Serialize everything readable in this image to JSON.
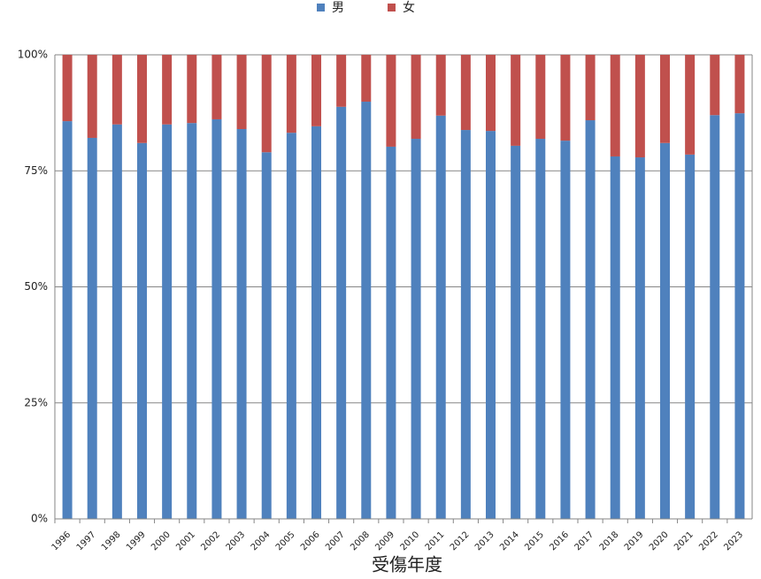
{
  "chart_data": {
    "type": "stacked_bar",
    "x_label": "受傷年度",
    "categories": [
      "1996",
      "1997",
      "1998",
      "1999",
      "2000",
      "2001",
      "2002",
      "2003",
      "2004",
      "2005",
      "2006",
      "2007",
      "2008",
      "2009",
      "2010",
      "2011",
      "2012",
      "2013",
      "2014",
      "2015",
      "2016",
      "2017",
      "2018",
      "2019",
      "2020",
      "2021",
      "2022",
      "2023"
    ],
    "series": [
      {
        "name": "男",
        "color": "#4f81bd",
        "values": [
          85.7,
          82.1,
          85.0,
          81.0,
          85.0,
          85.3,
          86.1,
          84.0,
          79.0,
          83.2,
          84.6,
          88.8,
          89.9,
          80.2,
          81.9,
          86.9,
          83.8,
          83.6,
          80.4,
          81.9,
          81.5,
          85.9,
          78.1,
          77.9,
          81.0,
          78.5,
          87.0,
          87.4
        ]
      },
      {
        "name": "女",
        "color": "#c0504d",
        "values": [
          14.3,
          17.9,
          15.0,
          19.0,
          15.0,
          14.7,
          13.9,
          16.0,
          21.0,
          16.8,
          15.4,
          11.2,
          10.1,
          19.8,
          18.1,
          13.1,
          16.2,
          16.4,
          19.6,
          18.1,
          18.5,
          14.1,
          21.9,
          22.1,
          19.0,
          21.5,
          13.0,
          12.6
        ]
      }
    ],
    "ylim": [
      0,
      100
    ],
    "yticks": [
      {
        "value": 0,
        "label": "0%"
      },
      {
        "value": 25,
        "label": "25%"
      },
      {
        "value": 50,
        "label": "50%"
      },
      {
        "value": 75,
        "label": "75%"
      },
      {
        "value": 100,
        "label": "100%"
      }
    ],
    "grid": true,
    "legend": "top"
  }
}
